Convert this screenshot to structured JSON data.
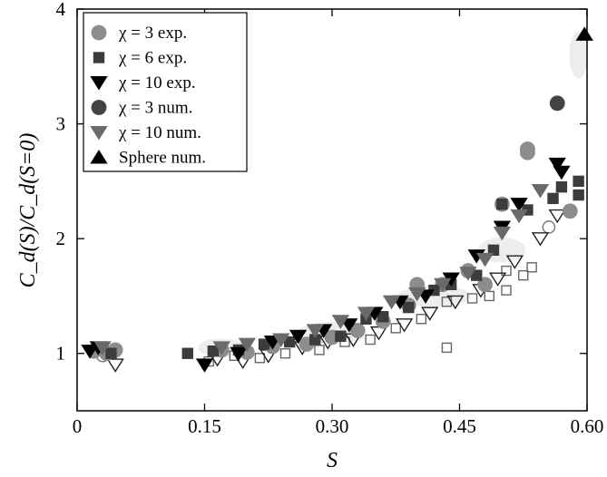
{
  "chart_data": {
    "type": "scatter",
    "title": "",
    "xlabel": "S",
    "ylabel": "C_d(S)/C_d(S=0)",
    "xlim": [
      0,
      0.6
    ],
    "ylim": [
      0.5,
      4
    ],
    "x_ticks": [
      "0",
      "0.15",
      "0.30",
      "0.45",
      "0.60"
    ],
    "y_ticks": [
      "1",
      "2",
      "3",
      "4"
    ],
    "grid": false,
    "legend_position": "top-left",
    "series": [
      {
        "name": "χ = 3 exp.",
        "marker": "circle",
        "color": "#8c8c8c",
        "points": [
          [
            0.02,
            1.02
          ],
          [
            0.035,
            1.0
          ],
          [
            0.045,
            1.03
          ],
          [
            0.17,
            1.03
          ],
          [
            0.2,
            1.01
          ],
          [
            0.23,
            1.06
          ],
          [
            0.27,
            1.08
          ],
          [
            0.3,
            1.14
          ],
          [
            0.33,
            1.2
          ],
          [
            0.36,
            1.28
          ],
          [
            0.39,
            1.42
          ],
          [
            0.4,
            1.6
          ],
          [
            0.43,
            1.6
          ],
          [
            0.46,
            1.72
          ],
          [
            0.48,
            1.6
          ],
          [
            0.5,
            2.3
          ],
          [
            0.53,
            2.75
          ],
          [
            0.53,
            2.78
          ],
          [
            0.58,
            2.24
          ]
        ]
      },
      {
        "name": "χ = 6 exp.",
        "marker": "square",
        "color": "#3c3c3c",
        "points": [
          [
            0.04,
            1.0
          ],
          [
            0.13,
            1.0
          ],
          [
            0.16,
            1.02
          ],
          [
            0.19,
            1.03
          ],
          [
            0.22,
            1.08
          ],
          [
            0.25,
            1.1
          ],
          [
            0.28,
            1.12
          ],
          [
            0.31,
            1.15
          ],
          [
            0.34,
            1.3
          ],
          [
            0.36,
            1.32
          ],
          [
            0.39,
            1.4
          ],
          [
            0.42,
            1.55
          ],
          [
            0.44,
            1.6
          ],
          [
            0.47,
            1.68
          ],
          [
            0.49,
            1.9
          ],
          [
            0.5,
            2.3
          ],
          [
            0.53,
            2.25
          ],
          [
            0.56,
            2.35
          ],
          [
            0.57,
            2.45
          ],
          [
            0.59,
            2.5
          ],
          [
            0.59,
            2.38
          ]
        ]
      },
      {
        "name": "χ = 10 exp.",
        "marker": "triangle-down",
        "color": "#000000",
        "points": [
          [
            0.015,
            1.02
          ],
          [
            0.025,
            1.05
          ],
          [
            0.15,
            0.9
          ],
          [
            0.19,
            1.0
          ],
          [
            0.23,
            1.1
          ],
          [
            0.26,
            1.15
          ],
          [
            0.29,
            1.2
          ],
          [
            0.32,
            1.25
          ],
          [
            0.35,
            1.35
          ],
          [
            0.38,
            1.45
          ],
          [
            0.41,
            1.5
          ],
          [
            0.44,
            1.65
          ],
          [
            0.47,
            1.85
          ],
          [
            0.5,
            2.1
          ],
          [
            0.52,
            2.3
          ],
          [
            0.565,
            2.65
          ],
          [
            0.57,
            2.58
          ]
        ]
      },
      {
        "name": "χ = 3 num.",
        "marker": "circle",
        "color": "#444444",
        "points": [
          [
            0.565,
            3.18
          ]
        ]
      },
      {
        "name": "χ = 10 num.",
        "marker": "triangle-down",
        "color": "#6a6a6a",
        "points": [
          [
            0.03,
            1.05
          ],
          [
            0.17,
            1.05
          ],
          [
            0.2,
            1.08
          ],
          [
            0.24,
            1.12
          ],
          [
            0.28,
            1.2
          ],
          [
            0.31,
            1.28
          ],
          [
            0.34,
            1.35
          ],
          [
            0.37,
            1.45
          ],
          [
            0.4,
            1.52
          ],
          [
            0.43,
            1.6
          ],
          [
            0.46,
            1.7
          ],
          [
            0.48,
            1.82
          ],
          [
            0.5,
            2.05
          ],
          [
            0.52,
            2.2
          ],
          [
            0.545,
            2.42
          ]
        ]
      },
      {
        "name": "Sphere num.",
        "marker": "triangle-up",
        "color": "#000000",
        "points": [
          [
            0.597,
            3.78
          ]
        ]
      }
    ],
    "hollow_markers": {
      "circles": [
        [
          0.03,
          0.98
        ],
        [
          0.555,
          2.1
        ]
      ],
      "squares": [
        [
          0.155,
          0.93
        ],
        [
          0.185,
          0.98
        ],
        [
          0.215,
          0.96
        ],
        [
          0.245,
          1.0
        ],
        [
          0.285,
          1.03
        ],
        [
          0.315,
          1.1
        ],
        [
          0.345,
          1.12
        ],
        [
          0.375,
          1.22
        ],
        [
          0.405,
          1.3
        ],
        [
          0.435,
          1.05
        ],
        [
          0.435,
          1.45
        ],
        [
          0.465,
          1.48
        ],
        [
          0.485,
          1.5
        ],
        [
          0.505,
          1.55
        ],
        [
          0.525,
          1.68
        ],
        [
          0.535,
          1.75
        ],
        [
          0.505,
          1.72
        ]
      ],
      "triangles_down": [
        [
          0.045,
          0.9
        ],
        [
          0.165,
          0.95
        ],
        [
          0.195,
          0.93
        ],
        [
          0.225,
          0.98
        ],
        [
          0.265,
          1.05
        ],
        [
          0.295,
          1.1
        ],
        [
          0.325,
          1.12
        ],
        [
          0.355,
          1.18
        ],
        [
          0.385,
          1.25
        ],
        [
          0.415,
          1.35
        ],
        [
          0.445,
          1.45
        ],
        [
          0.475,
          1.55
        ],
        [
          0.495,
          1.65
        ],
        [
          0.515,
          1.8
        ],
        [
          0.545,
          2.0
        ],
        [
          0.565,
          2.2
        ]
      ]
    }
  }
}
